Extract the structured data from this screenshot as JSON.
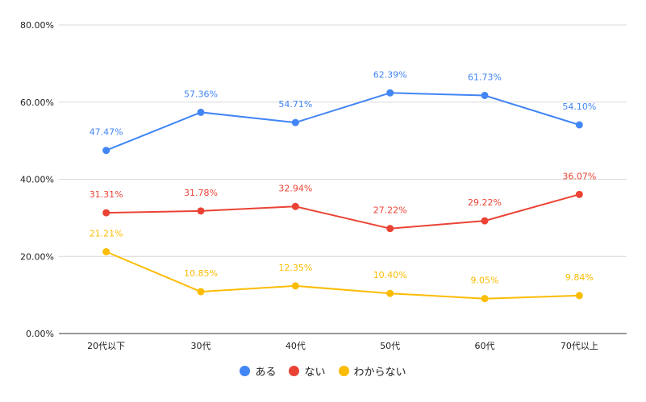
{
  "chart_data": {
    "type": "line",
    "title": "",
    "xlabel": "",
    "ylabel": "",
    "categories": [
      "20代以下",
      "30代",
      "40代",
      "50代",
      "60代",
      "70代以上"
    ],
    "ylim": [
      0,
      80
    ],
    "yticks": [
      "0.00%",
      "20.00%",
      "40.00%",
      "60.00%",
      "80.00%"
    ],
    "grid": true,
    "legend_position": "bottom",
    "series": [
      {
        "name": "ある",
        "color": "#4285F4",
        "values": [
          47.47,
          57.36,
          54.71,
          62.39,
          61.73,
          54.1
        ],
        "labels": [
          "47.47%",
          "57.36%",
          "54.71%",
          "62.39%",
          "61.73%",
          "54.10%"
        ]
      },
      {
        "name": "ない",
        "color": "#EA4335",
        "values": [
          31.31,
          31.78,
          32.94,
          27.22,
          29.22,
          36.07
        ],
        "labels": [
          "31.31%",
          "31.78%",
          "32.94%",
          "27.22%",
          "29.22%",
          "36.07%"
        ]
      },
      {
        "name": "わからない",
        "color": "#FBBC04",
        "values": [
          21.21,
          10.85,
          12.35,
          10.4,
          9.05,
          9.84
        ],
        "labels": [
          "21.21%",
          "10.85%",
          "12.35%",
          "10.40%",
          "9.05%",
          "9.84%"
        ]
      }
    ]
  }
}
